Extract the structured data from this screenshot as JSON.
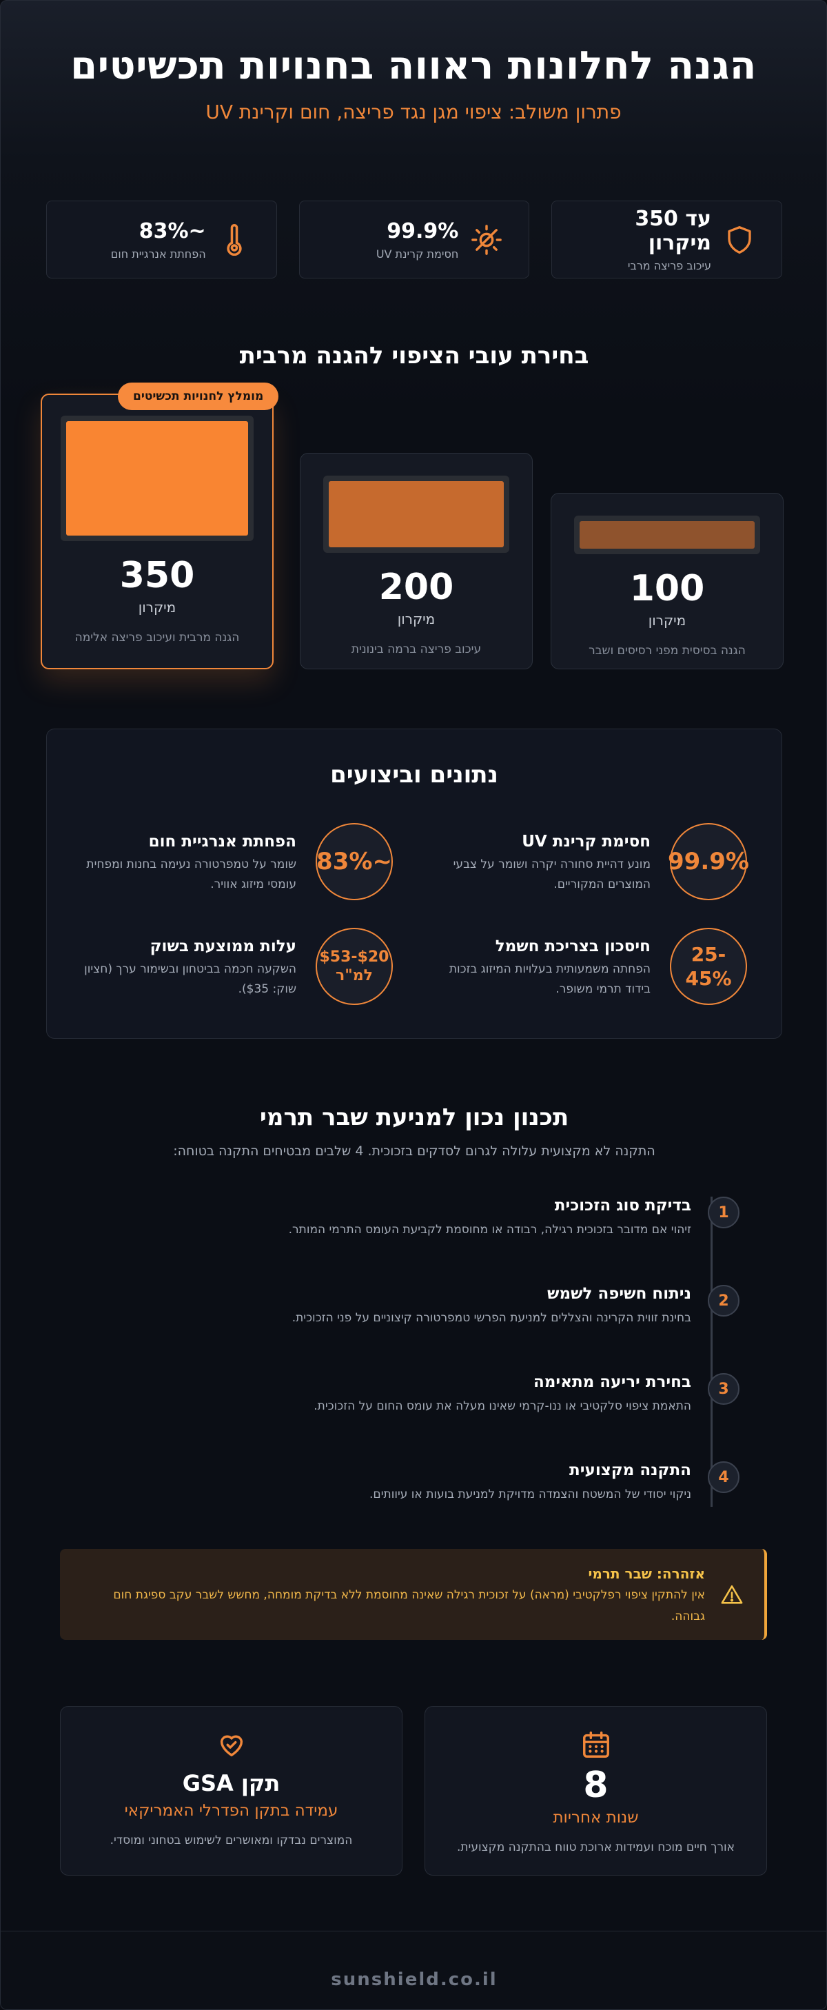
{
  "hero": {
    "title": "הגנה לחלונות ראווה בחנויות תכשיטים",
    "subtitle": "פתרון משולב: ציפוי מגן נגד פריצה, חום וקרינת UV"
  },
  "stats": [
    {
      "value": "עד 350 מיקרון",
      "label": "עיכוב פריצה מרבי",
      "icon": "shield-icon"
    },
    {
      "value": "99.9%",
      "label": "חסימת קרינת UV",
      "icon": "sun-blocked-icon"
    },
    {
      "value": "~83%",
      "label": "הפחתת אנרגיית חום",
      "icon": "thermometer-icon"
    }
  ],
  "thickness": {
    "title": "בחירת עובי הציפוי להגנה מרבית",
    "badge": "מומלץ לחנויות תכשיטים",
    "cards": [
      {
        "value": "350",
        "unit": "מיקרון",
        "desc": "הגנה מרבית ועיכוב פריצה אלימה",
        "swatch_color": "#f98532"
      },
      {
        "value": "200",
        "unit": "מיקרון",
        "desc": "עיכוב פריצה ברמה בינונית",
        "swatch_color": "#c66a2e"
      },
      {
        "value": "100",
        "unit": "מיקרון",
        "desc": "הגנה בסיסית מפני רסיסים ושבר",
        "swatch_color": "#8f532d"
      }
    ]
  },
  "performance": {
    "title": "נתונים וביצועים",
    "items": [
      {
        "metric": "99.9%",
        "title": "חסימת קרינת UV",
        "desc": "מונע דהיית סחורה יקרה ושומר על צבעי המוצרים המקוריים."
      },
      {
        "metric": "~83%",
        "title": "הפחתת אנרגיית חום",
        "desc": "שומר על טמפרטורה נעימה בחנות ומפחית עומסי מיזוג אוויר."
      },
      {
        "metric": "25-45%",
        "title": "חיסכון בצריכת חשמל",
        "desc": "הפחתה משמעותית בעלויות המיזוג בזכות בידוד תרמי משופר."
      },
      {
        "metric": "$20-$53 למ\"ר",
        "title": "עלות ממוצעת בשוק",
        "desc": "השקעה חכמה בביטחון ובשימור ערך (חציון שוק: $35)."
      }
    ]
  },
  "planning": {
    "title": "תכנון נכון למניעת שבר תרמי",
    "subtitle": "התקנה לא מקצועית עלולה לגרום לסדקים בזכוכית. 4 שלבים מבטיחים התקנה בטוחה:",
    "steps": [
      {
        "number": "1",
        "title": "בדיקת סוג הזכוכית",
        "desc": "זיהוי אם מדובר בזכוכית רגילה, רבודה או מחוסמת לקביעת העומס התרמי המותר."
      },
      {
        "number": "2",
        "title": "ניתוח חשיפה לשמש",
        "desc": "בחינת זווית הקרינה והצללים למניעת הפרשי טמפרטורה קיצוניים על פני הזכוכית."
      },
      {
        "number": "3",
        "title": "בחירת יריעה מתאימה",
        "desc": "התאמת ציפוי סלקטיבי או ננו-קרמי שאינו מעלה את עומס החום על הזכוכית."
      },
      {
        "number": "4",
        "title": "התקנה מקצועית",
        "desc": "ניקוי יסודי של המשטח והצמדה מדויקת למניעת בועות או עיוותים."
      }
    ]
  },
  "warning": {
    "title": "אזהרה: שבר תרמי",
    "text": "אין להתקין ציפוי רפלקטיבי (מראה) על זכוכית רגילה שאינה מחוסמת ללא בדיקת מומחה, מחשש לשבר עקב ספיגת חום גבוהה."
  },
  "highlights": [
    {
      "value": "8",
      "sub": "שנות אחריות",
      "desc": "אורך חיים מוכח ועמידות ארוכת טווח בהתקנה מקצועית.",
      "icon": "calendar-icon"
    },
    {
      "value": "תקן GSA",
      "sub": "עמידה בתקן הפדרלי האמריקאי",
      "desc": "המוצרים נבדקו ומאושרים לשימוש בטחוני ומוסדי.",
      "icon": "heart-check-icon"
    }
  ],
  "footer": {
    "site": "sunshield.co.il"
  },
  "colors": {
    "accent": "#f0873a",
    "background": "#0b0e15",
    "card": "#121620",
    "warning": "#f6c34a"
  }
}
